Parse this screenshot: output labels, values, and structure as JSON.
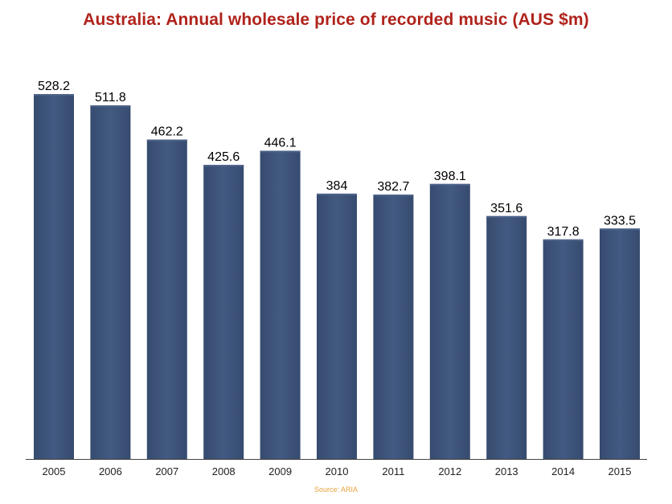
{
  "title": "Australia: Annual wholesale price of recorded music (AUS $m)",
  "source": "Source: ARIA",
  "colors": {
    "title": "#b0231c",
    "bar": "#3e5479",
    "bar_highlight": "#4d6288",
    "axis": "#444444",
    "source": "#e8a23a"
  },
  "chart_data": {
    "type": "bar",
    "title": "Australia: Annual wholesale price of recorded music (AUS $m)",
    "categories": [
      "2005",
      "2006",
      "2007",
      "2008",
      "2009",
      "2010",
      "2011",
      "2012",
      "2013",
      "2014",
      "2015"
    ],
    "values": [
      528.2,
      511.8,
      462.2,
      425.6,
      446.1,
      384,
      382.7,
      398.1,
      351.6,
      317.8,
      333.5
    ],
    "data_labels": [
      "528.2",
      "511.8",
      "462.2",
      "425.6",
      "446.1",
      "384",
      "382.7",
      "398.1",
      "351.6",
      "317.8",
      "333.5"
    ],
    "xlabel": "",
    "ylabel": "",
    "ylim": [
      0,
      528.2
    ],
    "grid": false,
    "legend": "none"
  }
}
